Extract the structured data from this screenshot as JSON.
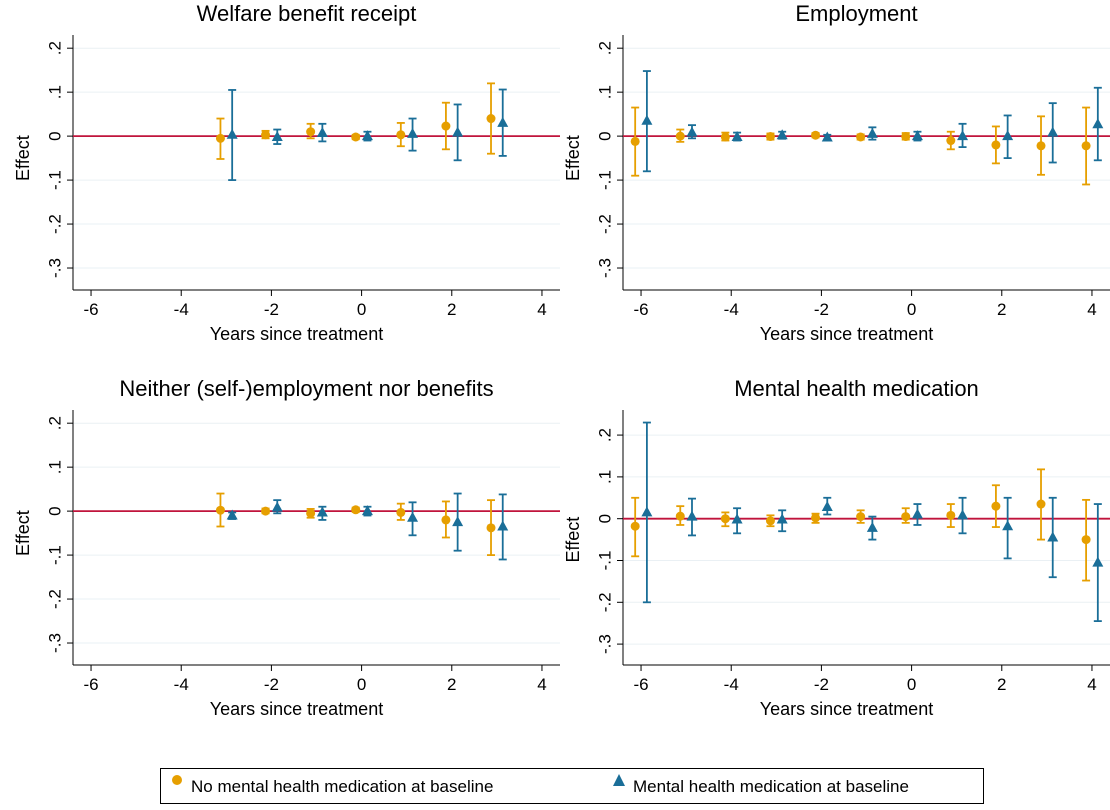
{
  "colors": {
    "orange": "#E69F00",
    "blue": "#1A6E98",
    "zero_line": "#C0143C",
    "grid": "#EAF0F4"
  },
  "legend": {
    "items": [
      {
        "label": "No mental health medication at baseline",
        "marker": "circle",
        "color": "#E69F00"
      },
      {
        "label": "Mental health medication at baseline",
        "marker": "triangle",
        "color": "#1A6E98"
      }
    ]
  },
  "chart_data": [
    {
      "type": "scatter",
      "title": "Welfare benefit receipt",
      "xlabel": "Years since treatment",
      "ylabel": "Effect",
      "xlim": [
        -6.4,
        4.4
      ],
      "ylim": [
        -0.35,
        0.23
      ],
      "xticks": [
        "-6",
        "-4",
        "-2",
        "0",
        "2",
        "4"
      ],
      "yticks": [
        ".2",
        ".1",
        "0",
        "-.1",
        "-.2",
        "-.3"
      ],
      "grid": true,
      "series": [
        {
          "name": "No mental health medication at baseline",
          "marker": "circle",
          "color": "#E69F00",
          "x": [
            -3,
            -2,
            -1,
            0,
            1,
            2,
            3
          ],
          "y": [
            -0.005,
            0.003,
            0.01,
            -0.002,
            0.003,
            0.023,
            0.04
          ],
          "lo": [
            -0.052,
            -0.005,
            -0.005,
            -0.007,
            -0.023,
            -0.03,
            -0.04
          ],
          "hi": [
            0.04,
            0.012,
            0.028,
            0.003,
            0.03,
            0.076,
            0.12
          ]
        },
        {
          "name": "Mental health medication at baseline",
          "marker": "triangle",
          "color": "#1A6E98",
          "x": [
            -3,
            -2,
            -1,
            0,
            1,
            2,
            3
          ],
          "y": [
            0.003,
            -0.002,
            0.007,
            0.0,
            0.005,
            0.008,
            0.03
          ],
          "lo": [
            -0.1,
            -0.018,
            -0.012,
            -0.01,
            -0.033,
            -0.055,
            -0.045
          ],
          "hi": [
            0.105,
            0.015,
            0.028,
            0.01,
            0.04,
            0.072,
            0.106
          ]
        }
      ]
    },
    {
      "type": "scatter",
      "title": "Employment",
      "xlabel": "Years since treatment",
      "ylabel": "Effect",
      "xlim": [
        -6.4,
        4.4
      ],
      "ylim": [
        -0.35,
        0.23
      ],
      "xticks": [
        "-6",
        "-4",
        "-2",
        "0",
        "2",
        "4"
      ],
      "yticks": [
        ".2",
        ".1",
        "0",
        "-.1",
        "-.2",
        "-.3"
      ],
      "grid": true,
      "series": [
        {
          "name": "No mental health medication at baseline",
          "marker": "circle",
          "color": "#E69F00",
          "x": [
            -6,
            -5,
            -4,
            -3,
            -2,
            -1,
            0,
            1,
            2,
            3,
            4
          ],
          "y": [
            -0.012,
            0.0,
            -0.002,
            -0.001,
            0.002,
            -0.002,
            -0.001,
            -0.01,
            -0.02,
            -0.022,
            -0.022
          ],
          "lo": [
            -0.09,
            -0.013,
            -0.01,
            -0.008,
            -0.003,
            -0.008,
            -0.008,
            -0.03,
            -0.062,
            -0.088,
            -0.11
          ],
          "hi": [
            0.065,
            0.015,
            0.008,
            0.006,
            0.007,
            0.004,
            0.007,
            0.01,
            0.022,
            0.045,
            0.065
          ]
        },
        {
          "name": "Mental health medication at baseline",
          "marker": "triangle",
          "color": "#1A6E98",
          "x": [
            -6,
            -5,
            -4,
            -3,
            -2,
            -1,
            0,
            1,
            2,
            3,
            4
          ],
          "y": [
            0.035,
            0.008,
            -0.002,
            0.002,
            -0.003,
            0.005,
            0.0,
            0.0,
            0.0,
            0.008,
            0.027
          ],
          "lo": [
            -0.08,
            -0.005,
            -0.01,
            -0.006,
            -0.008,
            -0.008,
            -0.01,
            -0.025,
            -0.05,
            -0.06,
            -0.055
          ],
          "hi": [
            0.148,
            0.025,
            0.008,
            0.01,
            0.003,
            0.02,
            0.01,
            0.028,
            0.047,
            0.075,
            0.11
          ]
        }
      ]
    },
    {
      "type": "scatter",
      "title": "Neither (self-)employment nor benefits",
      "xlabel": "Years since treatment",
      "ylabel": "Effect",
      "xlim": [
        -6.4,
        4.4
      ],
      "ylim": [
        -0.35,
        0.23
      ],
      "xticks": [
        "-6",
        "-4",
        "-2",
        "0",
        "2",
        "4"
      ],
      "yticks": [
        ".2",
        ".1",
        "0",
        "-.1",
        "-.2",
        "-.3"
      ],
      "grid": true,
      "series": [
        {
          "name": "No mental health medication at baseline",
          "marker": "circle",
          "color": "#E69F00",
          "x": [
            -3,
            -2,
            -1,
            0,
            1,
            2,
            3
          ],
          "y": [
            0.002,
            0.0,
            -0.005,
            0.003,
            -0.003,
            -0.02,
            -0.038
          ],
          "lo": [
            -0.035,
            -0.005,
            -0.015,
            -0.002,
            -0.02,
            -0.06,
            -0.1
          ],
          "hi": [
            0.04,
            0.006,
            0.005,
            0.008,
            0.017,
            0.022,
            0.025
          ]
        },
        {
          "name": "Mental health medication at baseline",
          "marker": "triangle",
          "color": "#1A6E98",
          "x": [
            -3,
            -2,
            -1,
            0,
            1,
            2,
            3
          ],
          "y": [
            -0.01,
            0.008,
            -0.003,
            0.0,
            -0.015,
            -0.025,
            -0.035
          ],
          "lo": [
            -0.018,
            -0.005,
            -0.02,
            -0.01,
            -0.055,
            -0.09,
            -0.11
          ],
          "hi": [
            -0.003,
            0.025,
            0.01,
            0.01,
            0.02,
            0.04,
            0.038
          ]
        }
      ]
    },
    {
      "type": "scatter",
      "title": "Mental health medication",
      "xlabel": "Years since treatment",
      "ylabel": "Effect",
      "xlim": [
        -6.4,
        4.4
      ],
      "ylim": [
        -0.35,
        0.26
      ],
      "xticks": [
        "-6",
        "-4",
        "-2",
        "0",
        "2",
        "4"
      ],
      "yticks": [
        ".2",
        ".1",
        "0",
        "-.1",
        "-.2",
        "-.3"
      ],
      "grid": true,
      "series": [
        {
          "name": "No mental health medication at baseline",
          "marker": "circle",
          "color": "#E69F00",
          "x": [
            -6,
            -5,
            -4,
            -3,
            -2,
            -1,
            0,
            1,
            2,
            3,
            4
          ],
          "y": [
            -0.018,
            0.006,
            0.0,
            -0.005,
            0.002,
            0.005,
            0.005,
            0.008,
            0.03,
            0.035,
            -0.05
          ],
          "lo": [
            -0.09,
            -0.015,
            -0.018,
            -0.018,
            -0.01,
            -0.01,
            -0.01,
            -0.02,
            -0.02,
            -0.05,
            -0.148
          ],
          "hi": [
            0.05,
            0.03,
            0.015,
            0.008,
            0.012,
            0.02,
            0.025,
            0.035,
            0.08,
            0.118,
            0.045
          ]
        },
        {
          "name": "Mental health medication at baseline",
          "marker": "triangle",
          "color": "#1A6E98",
          "x": [
            -6,
            -5,
            -4,
            -3,
            -2,
            -1,
            0,
            1,
            2,
            3,
            4
          ],
          "y": [
            0.015,
            0.005,
            -0.002,
            -0.002,
            0.028,
            -0.022,
            0.01,
            0.008,
            -0.018,
            -0.045,
            -0.105
          ],
          "lo": [
            -0.2,
            -0.04,
            -0.035,
            -0.03,
            0.01,
            -0.05,
            -0.015,
            -0.035,
            -0.095,
            -0.14,
            -0.245
          ],
          "hi": [
            0.23,
            0.048,
            0.025,
            0.02,
            0.05,
            0.005,
            0.035,
            0.05,
            0.05,
            0.05,
            0.035
          ]
        }
      ]
    }
  ]
}
